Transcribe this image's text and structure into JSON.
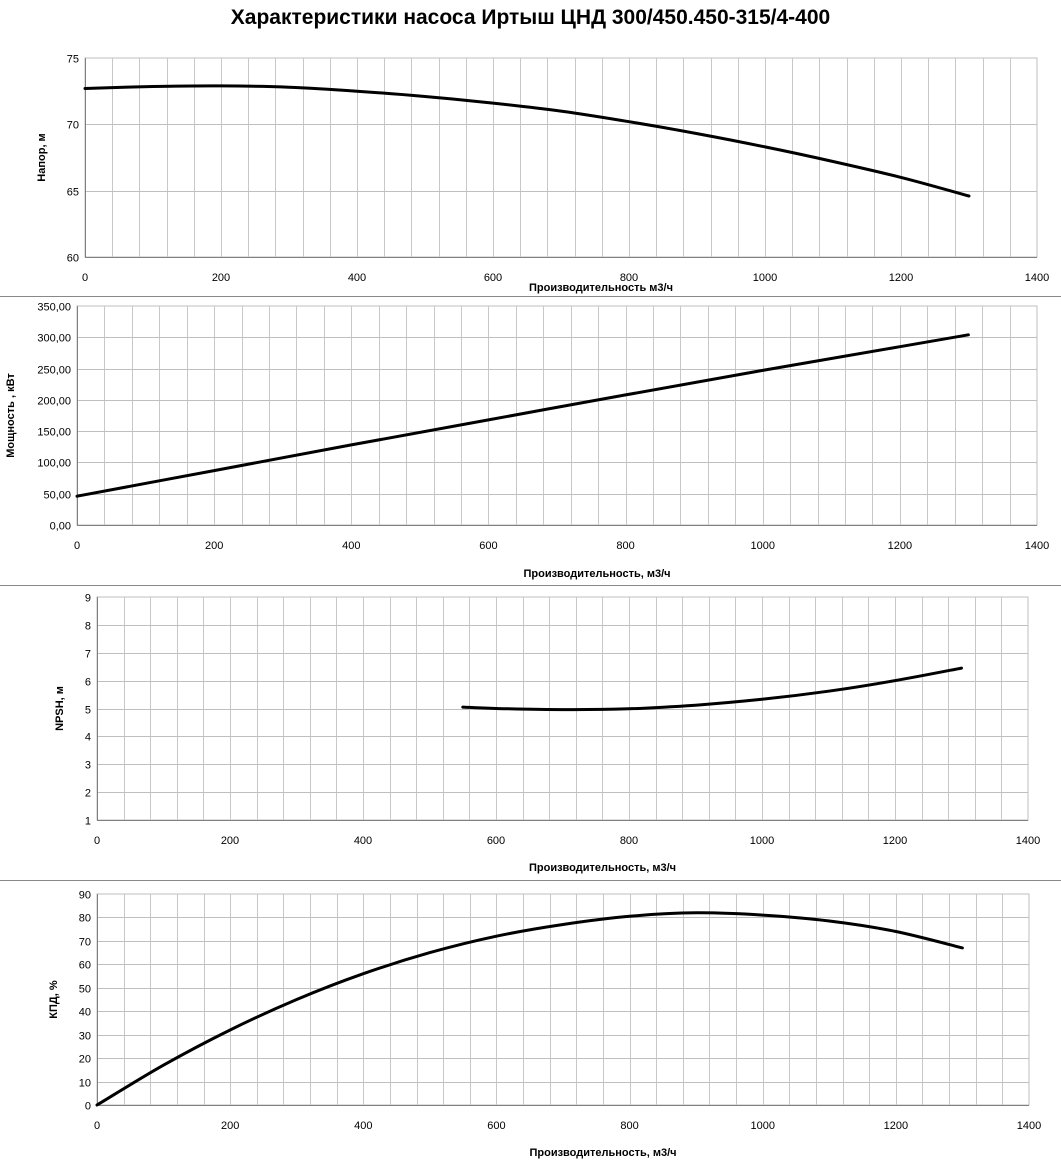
{
  "title": "Характеристики насоса Иртыш ЦНД 300/450.450-315/4-400",
  "chart_data": [
    {
      "type": "line",
      "xlabel": "Производительность м3/ч",
      "ylabel": "Напор, м",
      "xlim": [
        0,
        1400
      ],
      "ylim": [
        60,
        75
      ],
      "xticks": [
        "0",
        "200",
        "400",
        "600",
        "800",
        "1000",
        "1200",
        "1400"
      ],
      "yticks": [
        "60",
        "65",
        "70",
        "75"
      ],
      "grid": true,
      "series": [
        {
          "x": [
            0,
            100,
            200,
            300,
            400,
            500,
            600,
            700,
            800,
            900,
            1000,
            1100,
            1200,
            1300
          ],
          "values": [
            72.7,
            72.85,
            72.9,
            72.8,
            72.5,
            72.1,
            71.6,
            71.0,
            70.2,
            69.3,
            68.3,
            67.2,
            66.0,
            64.6
          ]
        }
      ]
    },
    {
      "type": "line",
      "xlabel": "Производительность, м3/ч",
      "ylabel": "Мощность , кВт",
      "xlim": [
        0,
        1400
      ],
      "ylim": [
        0,
        350
      ],
      "xticks": [
        "0",
        "200",
        "400",
        "600",
        "800",
        "1000",
        "1200",
        "1400"
      ],
      "yticks": [
        "0,00",
        "50,00",
        "100,00",
        "150,00",
        "200,00",
        "250,00",
        "300,00",
        "350,00"
      ],
      "grid": true,
      "series": [
        {
          "x": [
            0,
            200,
            400,
            600,
            800,
            1000,
            1200,
            1300
          ],
          "values": [
            46,
            87,
            128,
            168,
            208,
            247,
            285,
            304
          ]
        }
      ]
    },
    {
      "type": "line",
      "xlabel": "Производительность, м3/ч",
      "ylabel": "NPSH, м",
      "xlim": [
        0,
        1400
      ],
      "ylim": [
        1,
        9
      ],
      "xticks": [
        "0",
        "200",
        "400",
        "600",
        "800",
        "1000",
        "1200",
        "1400"
      ],
      "yticks": [
        "1",
        "2",
        "3",
        "4",
        "5",
        "6",
        "7",
        "8",
        "9"
      ],
      "grid": true,
      "series": [
        {
          "x": [
            550,
            600,
            700,
            800,
            900,
            1000,
            1100,
            1200,
            1300
          ],
          "values": [
            5.05,
            5.0,
            4.96,
            4.99,
            5.12,
            5.33,
            5.62,
            6.0,
            6.45
          ]
        }
      ]
    },
    {
      "type": "line",
      "xlabel": "Производительность, м3/ч",
      "ylabel": "КПД, %",
      "xlim": [
        0,
        1400
      ],
      "ylim": [
        0,
        90
      ],
      "xticks": [
        "0",
        "200",
        "400",
        "600",
        "800",
        "1000",
        "1200",
        "1400"
      ],
      "yticks": [
        "0",
        "10",
        "20",
        "30",
        "40",
        "50",
        "60",
        "70",
        "80",
        "90"
      ],
      "grid": true,
      "series": [
        {
          "x": [
            0,
            100,
            200,
            300,
            400,
            500,
            600,
            700,
            800,
            900,
            1000,
            1100,
            1200,
            1300
          ],
          "values": [
            0,
            17,
            32,
            45,
            56,
            65,
            72,
            77,
            80.5,
            82,
            81,
            78.5,
            74,
            67
          ]
        }
      ]
    }
  ]
}
